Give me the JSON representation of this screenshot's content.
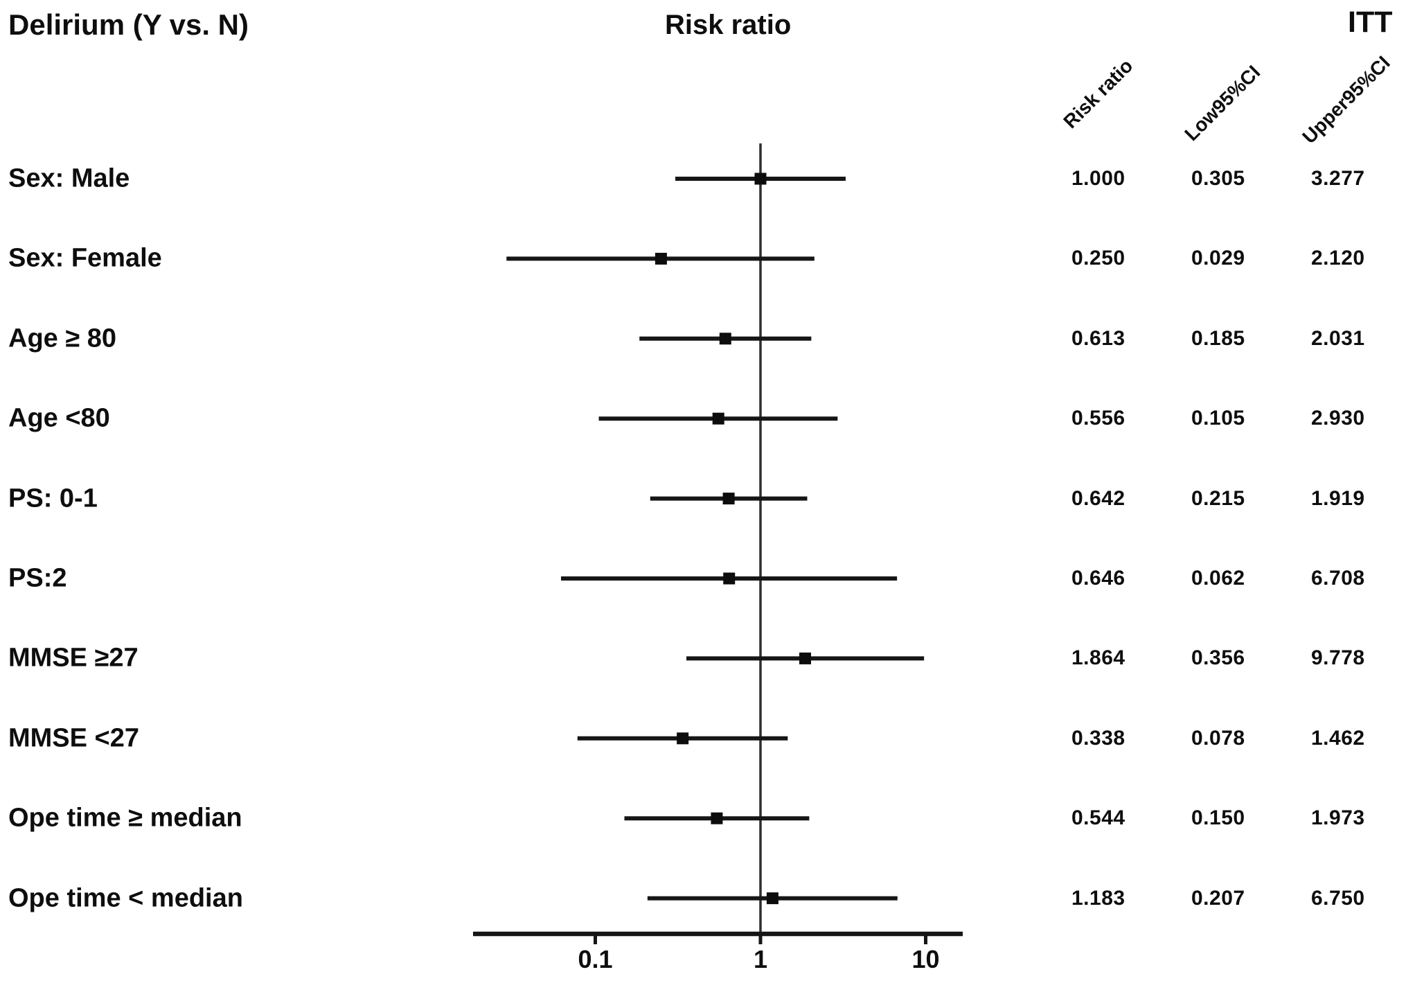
{
  "figure": {
    "title_left": "Delirium (Y vs. N)",
    "plot_title": "Risk ratio",
    "analysis_label": "ITT",
    "column_headers": [
      "Risk ratio",
      "Low95%CI",
      "Upper95%CI"
    ]
  },
  "chart_data": {
    "type": "scatter",
    "subtype": "forest-plot",
    "title": "Risk ratio",
    "group_title": "Delirium (Y vs. N)",
    "analysis": "ITT",
    "x_scale": "log10",
    "x_ticks": [
      "0.1",
      "1",
      "10"
    ],
    "x_range": [
      0.018,
      17
    ],
    "reference_line": 1,
    "grid": false,
    "legend_position": "none",
    "categories": [
      "Sex: Male",
      "Sex: Female",
      "Age ≥ 80",
      "Age <80",
      "PS: 0-1",
      "PS:2",
      "MMSE ≥27",
      "MMSE <27",
      "Ope time ≥ median",
      "Ope time < median"
    ],
    "series": [
      {
        "name": "Risk ratio",
        "values": [
          1.0,
          0.25,
          0.613,
          0.556,
          0.642,
          0.646,
          1.864,
          0.338,
          0.544,
          1.183
        ]
      },
      {
        "name": "Low95%CI",
        "values": [
          0.305,
          0.029,
          0.185,
          0.105,
          0.215,
          0.062,
          0.356,
          0.078,
          0.15,
          0.207
        ]
      },
      {
        "name": "Upper95%CI",
        "values": [
          3.277,
          2.12,
          2.031,
          2.93,
          1.919,
          6.708,
          9.778,
          1.462,
          1.973,
          6.75
        ]
      }
    ]
  }
}
